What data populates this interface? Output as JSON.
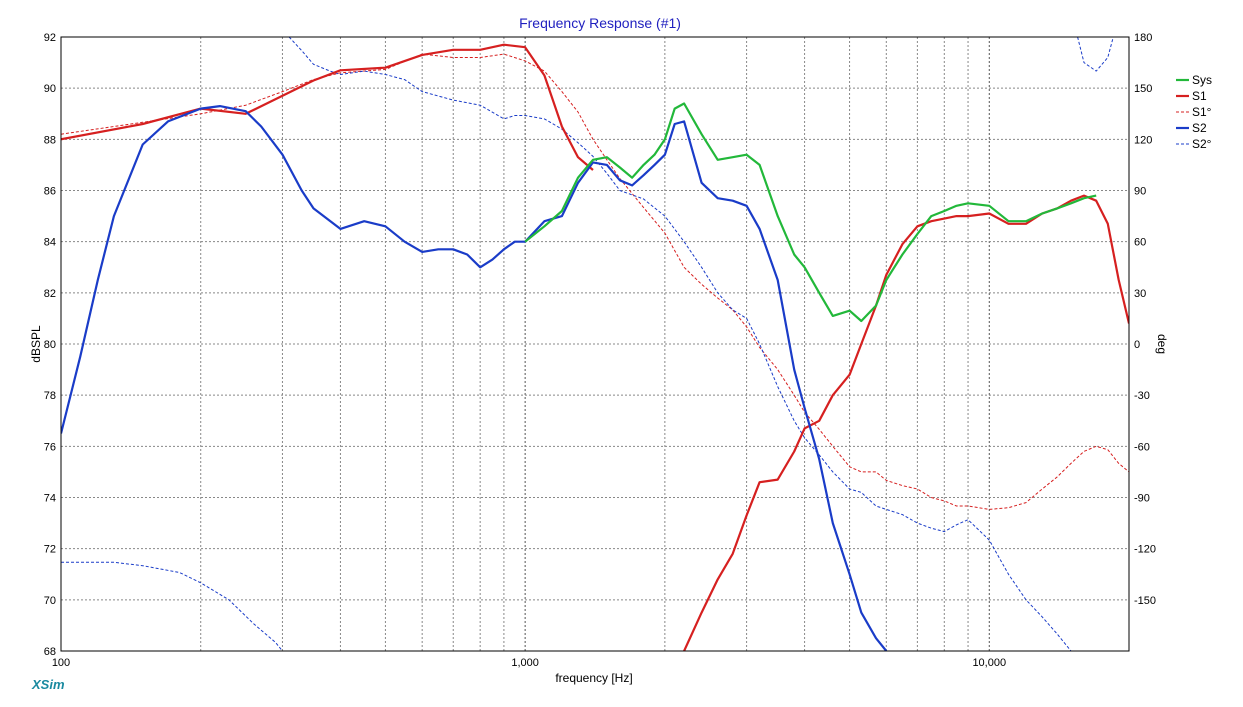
{
  "chart_data": {
    "type": "line",
    "title": "Frequency Response (#1)",
    "xlabel": "frequency [Hz]",
    "ylabel": "dBSPL",
    "y2label": "deg",
    "x_scale": "log",
    "xlim": [
      100,
      20000
    ],
    "ylim": [
      68,
      92
    ],
    "y2lim": [
      -180,
      180
    ],
    "x_tick_labels": [
      {
        "value": 100,
        "label": "100"
      },
      {
        "value": 1000,
        "label": "1,000"
      },
      {
        "value": 10000,
        "label": "10,000"
      }
    ],
    "y_ticks": [
      68,
      70,
      72,
      74,
      76,
      78,
      80,
      82,
      84,
      86,
      88,
      90,
      92
    ],
    "y2_ticks": [
      -150,
      -120,
      -90,
      -60,
      -30,
      0,
      30,
      60,
      90,
      120,
      150,
      180
    ],
    "grid": true,
    "legend_position": "right",
    "brand": "XSim",
    "series": [
      {
        "name": "Sys",
        "color": "#22b83a",
        "style": "solid",
        "axis": "left",
        "x": [
          1000,
          1100,
          1200,
          1300,
          1400,
          1500,
          1600,
          1700,
          1800,
          1900,
          2000,
          2100,
          2200,
          2400,
          2600,
          2800,
          3000,
          3200,
          3500,
          3800,
          4000,
          4300,
          4600,
          5000,
          5300,
          5700,
          6000,
          6500,
          7000,
          7500,
          8000,
          8500,
          9000,
          10000,
          11000,
          12000,
          13000,
          14000,
          15000,
          16000,
          17000
        ],
        "y": [
          84.0,
          84.6,
          85.2,
          86.5,
          87.2,
          87.3,
          86.9,
          86.5,
          87.0,
          87.4,
          88.0,
          89.2,
          89.4,
          88.2,
          87.2,
          87.3,
          87.4,
          87.0,
          85.0,
          83.5,
          83.0,
          82.0,
          81.1,
          81.3,
          80.9,
          81.5,
          82.5,
          83.5,
          84.3,
          85.0,
          85.2,
          85.4,
          85.5,
          85.4,
          84.8,
          84.8,
          85.1,
          85.3,
          85.5,
          85.7,
          85.8
        ]
      },
      {
        "name": "S1",
        "color": "#d62020",
        "style": "solid",
        "axis": "left",
        "x": [
          100,
          150,
          200,
          250,
          300,
          350,
          400,
          500,
          600,
          700,
          800,
          900,
          1000,
          1100,
          1200,
          1300,
          1400,
          1500,
          1600,
          1700,
          1800,
          1900,
          2000,
          2100,
          2200,
          2400,
          2600,
          2800,
          3000,
          3200,
          3500,
          3800,
          4000,
          4300,
          4600,
          5000,
          5300,
          5700,
          6000,
          6500,
          7000,
          7500,
          8000,
          8500,
          9000,
          10000,
          11000,
          12000,
          13000,
          14000,
          15000,
          16000,
          17000,
          18000,
          19000,
          20000
        ],
        "y": [
          88.0,
          88.6,
          89.2,
          89.0,
          89.7,
          90.3,
          90.7,
          90.8,
          91.3,
          91.5,
          91.5,
          91.7,
          91.6,
          90.5,
          88.5,
          87.3,
          86.8,
          null,
          null,
          null,
          null,
          null,
          null,
          null,
          68.0,
          69.5,
          70.8,
          71.8,
          73.3,
          74.6,
          74.7,
          75.8,
          76.7,
          77.0,
          78.0,
          78.8,
          80.0,
          81.5,
          82.7,
          83.9,
          84.6,
          84.8,
          84.9,
          85.0,
          85.0,
          85.1,
          84.7,
          84.7,
          85.1,
          85.3,
          85.6,
          85.8,
          85.6,
          84.7,
          82.5,
          80.8
        ]
      },
      {
        "name": "S1°",
        "color": "#d62020",
        "style": "dashed",
        "axis": "right",
        "x": [
          100,
          150,
          200,
          250,
          300,
          350,
          400,
          500,
          600,
          700,
          800,
          900,
          1000,
          1100,
          1200,
          1300,
          1400,
          1500,
          1600,
          1800,
          2000,
          2200,
          2400,
          2600,
          2800,
          3000,
          3200,
          3500,
          3800,
          4000,
          4300,
          4600,
          5000,
          5300,
          5700,
          6000,
          6500,
          7000,
          7500,
          8000,
          8500,
          9000,
          10000,
          11000,
          12000,
          13000,
          14000,
          15000,
          16000,
          17000,
          18000,
          19000,
          20000
        ],
        "y": [
          123,
          130,
          135,
          140,
          148,
          155,
          159,
          161,
          170,
          168,
          168,
          170,
          166,
          160,
          148,
          136,
          120,
          108,
          97,
          80,
          65,
          45,
          35,
          27,
          20,
          10,
          -2,
          -15,
          -30,
          -40,
          -50,
          -60,
          -72,
          -75,
          -75,
          -80,
          -83,
          -85,
          -90,
          -92,
          -95,
          -95,
          -97,
          -96,
          -93,
          -85,
          -78,
          -70,
          -63,
          -60,
          -62,
          -70,
          -75
        ]
      },
      {
        "name": "S2",
        "color": "#1a3cc8",
        "style": "solid",
        "axis": "left",
        "x": [
          100,
          110,
          120,
          130,
          150,
          170,
          200,
          220,
          250,
          270,
          300,
          330,
          350,
          400,
          450,
          500,
          550,
          600,
          650,
          700,
          750,
          800,
          850,
          900,
          950,
          1000,
          1100,
          1200,
          1300,
          1400,
          1500,
          1600,
          1700,
          1800,
          1900,
          2000,
          2100,
          2200,
          2400,
          2600,
          2800,
          3000,
          3200,
          3500,
          3800,
          4000,
          4300,
          4600,
          5000,
          5300,
          5700,
          6000
        ],
        "y": [
          76.5,
          79.5,
          82.5,
          85.0,
          87.8,
          88.7,
          89.2,
          89.3,
          89.1,
          88.5,
          87.4,
          86.0,
          85.3,
          84.5,
          84.8,
          84.6,
          84.0,
          83.6,
          83.7,
          83.7,
          83.5,
          83.0,
          83.3,
          83.7,
          84.0,
          84.0,
          84.8,
          85.0,
          86.3,
          87.1,
          87.0,
          86.4,
          86.2,
          86.6,
          87.0,
          87.4,
          88.6,
          88.7,
          86.3,
          85.7,
          85.6,
          85.4,
          84.5,
          82.5,
          79.0,
          77.5,
          75.5,
          73.0,
          71.0,
          69.5,
          68.5,
          68.0
        ]
      },
      {
        "name": "S2°",
        "color": "#1a3cc8",
        "style": "dashed",
        "axis": "right",
        "x": [
          100,
          130,
          150,
          180,
          200,
          230,
          260,
          290,
          300,
          310,
          330,
          350,
          380,
          400,
          450,
          500,
          550,
          600,
          700,
          800,
          900,
          950,
          1000,
          1100,
          1200,
          1300,
          1400,
          1500,
          1600,
          1800,
          2000,
          2200,
          2400,
          2600,
          2800,
          3000,
          3200,
          3500,
          3800,
          4000,
          4300,
          4600,
          5000,
          5300,
          5700,
          6000,
          6500,
          7000,
          7500,
          8000,
          8500,
          9000,
          10000,
          11000,
          12000,
          13000,
          14000,
          15000,
          15500,
          16000,
          17000,
          18000,
          18500,
          19000,
          19500
        ],
        "y": [
          -128,
          -128,
          -130,
          -134,
          -140,
          -150,
          -164,
          -175,
          -180,
          180,
          172,
          164,
          160,
          158,
          160,
          158,
          155,
          148,
          143,
          140,
          132,
          134,
          134,
          132,
          126,
          118,
          110,
          100,
          90,
          85,
          75,
          60,
          45,
          30,
          20,
          15,
          0,
          -25,
          -45,
          -55,
          -65,
          -75,
          -85,
          -87,
          -95,
          -97,
          -100,
          -105,
          -108,
          -110,
          -106,
          -103,
          -115,
          -135,
          -150,
          -160,
          -170,
          -180,
          180,
          165,
          160,
          168,
          180,
          -180,
          180
        ]
      }
    ]
  }
}
